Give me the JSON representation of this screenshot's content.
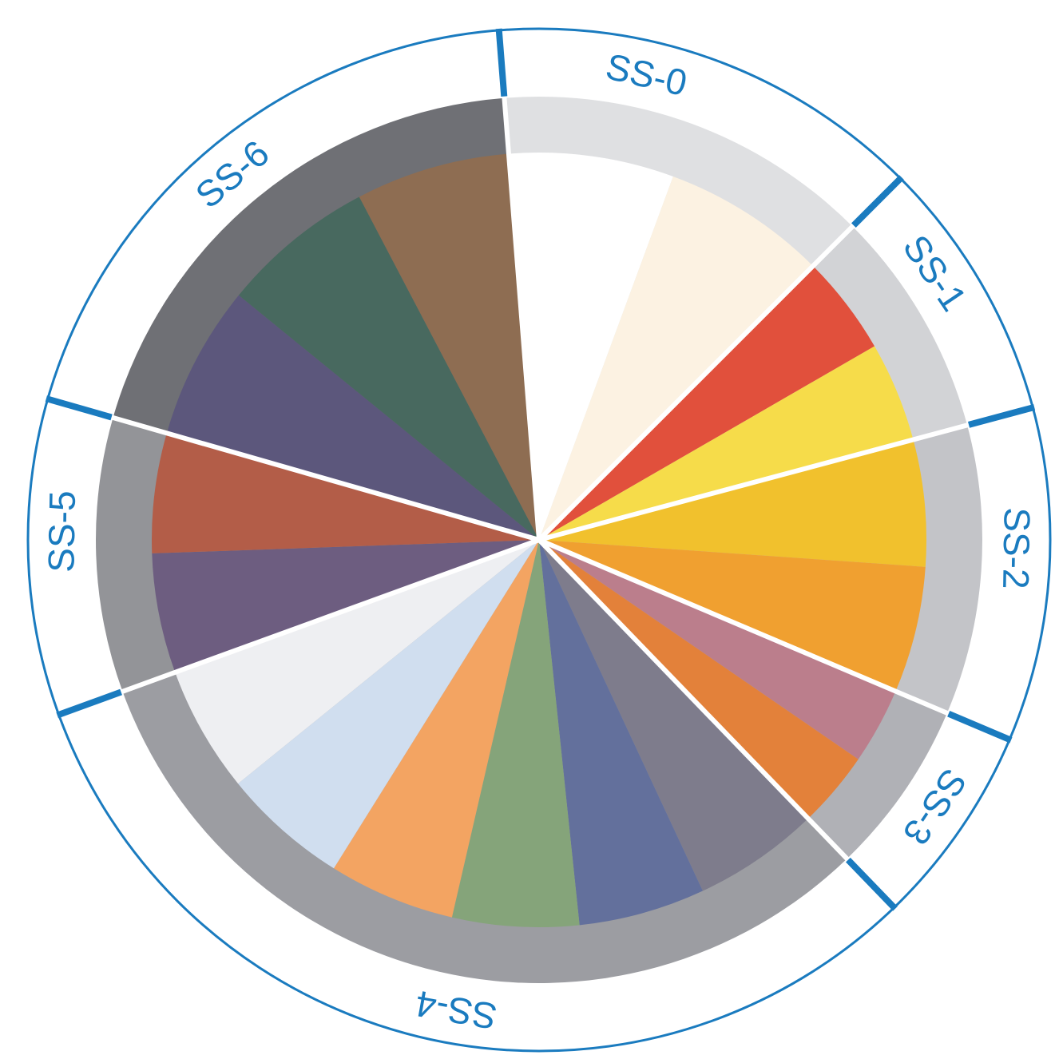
{
  "diagram": {
    "colors": {
      "outline": "#1a7bbf",
      "separator": "#ffffff"
    },
    "sectors": [
      {
        "label": "SS-0",
        "ring_color": "#dfe0e2",
        "wedges": [
          {
            "name": "white",
            "color": "#ffffff"
          },
          {
            "name": "cream",
            "color": "#fcf2e2"
          }
        ]
      },
      {
        "label": "SS-1",
        "ring_color": "#d2d3d6",
        "wedges": [
          {
            "name": "red",
            "color": "#e1503c"
          },
          {
            "name": "yellow",
            "color": "#f6dc4a"
          }
        ]
      },
      {
        "label": "SS-2",
        "ring_color": "#c3c4c8",
        "wedges": [
          {
            "name": "golden-yellow",
            "color": "#f1c12d"
          },
          {
            "name": "orange",
            "color": "#f0a030"
          }
        ]
      },
      {
        "label": "SS-3",
        "ring_color": "#b0b1b6",
        "wedges": [
          {
            "name": "dusty-rose",
            "color": "#bb7e8c"
          },
          {
            "name": "dark-orange",
            "color": "#e3813a"
          }
        ]
      },
      {
        "label": "SS-4",
        "ring_color": "#9c9da2",
        "wedges": [
          {
            "name": "taupe-gray",
            "color": "#7e7c8c"
          },
          {
            "name": "slate-blue",
            "color": "#63709c"
          },
          {
            "name": "sage-green",
            "color": "#85a47a"
          },
          {
            "name": "light-orange",
            "color": "#f3a462"
          },
          {
            "name": "pale-blue",
            "color": "#d0deef"
          },
          {
            "name": "pale-gray",
            "color": "#eeeff2"
          }
        ]
      },
      {
        "label": "SS-5",
        "ring_color": "#939498",
        "wedges": [
          {
            "name": "plum",
            "color": "#6d5d80"
          },
          {
            "name": "rust",
            "color": "#b35d48"
          }
        ]
      },
      {
        "label": "SS-6",
        "ring_color": "#6f7075",
        "wedges": [
          {
            "name": "dark-purple",
            "color": "#5c577c"
          },
          {
            "name": "dark-teal",
            "color": "#48695f"
          },
          {
            "name": "brown",
            "color": "#8e6d52"
          }
        ]
      }
    ]
  }
}
